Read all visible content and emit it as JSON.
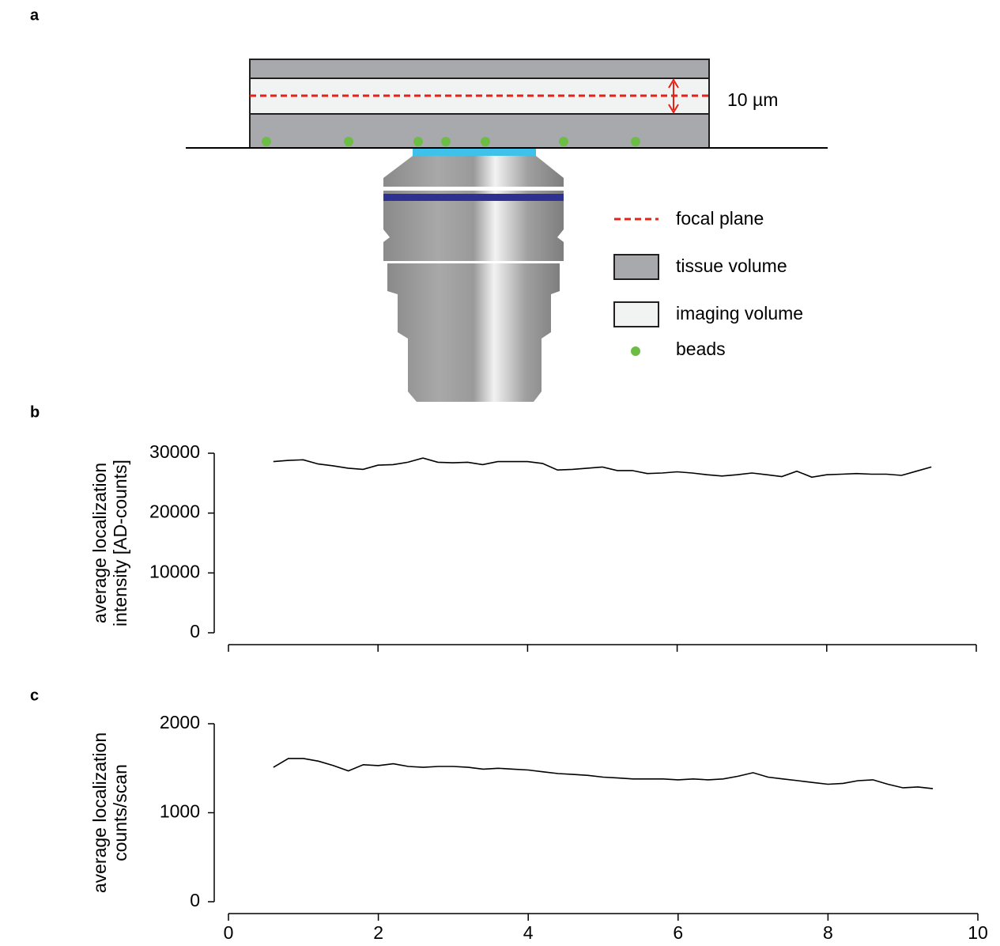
{
  "panel_labels": [
    "a",
    "b",
    "c"
  ],
  "diagram": {
    "scale_label": "10 µm",
    "legend": [
      "focal plane",
      "tissue volume",
      "imaging volume",
      "beads"
    ]
  },
  "chart_data": [
    {
      "type": "line",
      "ylabel": [
        "average localization",
        "intensity [AD-counts]"
      ],
      "x": [
        0.6,
        0.8,
        1.0,
        1.2,
        1.4,
        1.6,
        1.8,
        2.0,
        2.2,
        2.4,
        2.6,
        2.8,
        3.0,
        3.2,
        3.4,
        3.6,
        3.8,
        4.0,
        4.2,
        4.4,
        4.6,
        4.8,
        5.0,
        5.2,
        5.4,
        5.6,
        5.8,
        6.0,
        6.2,
        6.4,
        6.6,
        6.8,
        7.0,
        7.2,
        7.4,
        7.6,
        7.8,
        8.0,
        8.2,
        8.4,
        8.6,
        8.8,
        9.0,
        9.2,
        9.4
      ],
      "values": [
        28600,
        28800,
        28900,
        28200,
        27900,
        27500,
        27300,
        28000,
        28100,
        28500,
        29200,
        28500,
        28400,
        28500,
        28100,
        28600,
        28600,
        28600,
        28300,
        27200,
        27300,
        27500,
        27700,
        27100,
        27100,
        26600,
        26700,
        26900,
        26700,
        26400,
        26200,
        26400,
        26700,
        26400,
        26100,
        27000,
        26000,
        26400,
        26500,
        26600,
        26500,
        26500,
        26300,
        27000,
        27700
      ],
      "color": "#000000",
      "xlim": [
        0,
        10
      ],
      "xticks": [
        0,
        2,
        4,
        6,
        8,
        10
      ],
      "xtick_labels": false,
      "ylim": [
        0,
        30000
      ],
      "yticks": [
        0,
        10000,
        20000,
        30000
      ]
    },
    {
      "type": "line",
      "ylabel": [
        "average localization",
        "counts/scan"
      ],
      "x": [
        0.6,
        0.8,
        1.0,
        1.2,
        1.4,
        1.6,
        1.8,
        2.0,
        2.2,
        2.4,
        2.6,
        2.8,
        3.0,
        3.2,
        3.4,
        3.6,
        3.8,
        4.0,
        4.2,
        4.4,
        4.6,
        4.8,
        5.0,
        5.2,
        5.4,
        5.6,
        5.8,
        6.0,
        6.2,
        6.4,
        6.6,
        6.8,
        7.0,
        7.2,
        7.4,
        7.6,
        7.8,
        8.0,
        8.2,
        8.4,
        8.6,
        8.8,
        9.0,
        9.2,
        9.4
      ],
      "values": [
        1510,
        1610,
        1610,
        1580,
        1530,
        1470,
        1540,
        1530,
        1550,
        1520,
        1510,
        1520,
        1520,
        1510,
        1490,
        1500,
        1490,
        1480,
        1460,
        1440,
        1430,
        1420,
        1400,
        1390,
        1380,
        1380,
        1380,
        1370,
        1380,
        1370,
        1380,
        1410,
        1450,
        1400,
        1380,
        1360,
        1340,
        1320,
        1330,
        1360,
        1370,
        1320,
        1280,
        1290,
        1270
      ],
      "color": "#000000",
      "xlim": [
        0,
        10
      ],
      "xticks": [
        0,
        2,
        4,
        6,
        8,
        10
      ],
      "xtick_labels": true,
      "ylim": [
        0,
        2000
      ],
      "yticks": [
        0,
        1000,
        2000
      ]
    }
  ]
}
